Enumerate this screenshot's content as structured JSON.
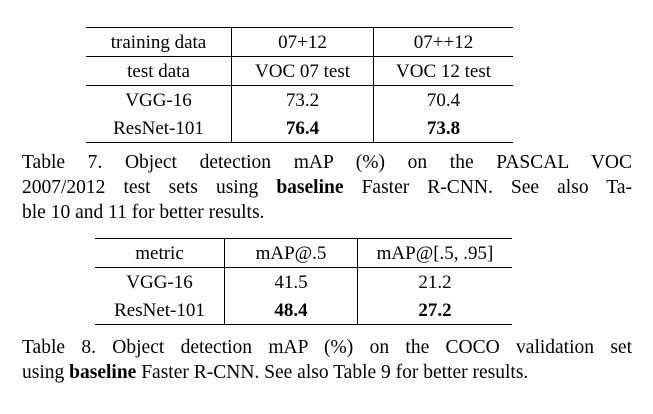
{
  "table7": {
    "header": [
      "training data",
      "07+12",
      "07++12"
    ],
    "subheader": [
      "test data",
      "VOC 07 test",
      "VOC 12 test"
    ],
    "rows": [
      {
        "model": "VGG-16",
        "values": [
          "73.2",
          "70.4"
        ],
        "bold": false
      },
      {
        "model": "ResNet-101",
        "values": [
          "76.4",
          "73.8"
        ],
        "bold": true
      }
    ],
    "caption": {
      "lines": [
        {
          "pre": "Table 7. Object detection mAP (%) on the PASCAL VOC",
          "bold": "",
          "post": ""
        },
        {
          "pre": "2007/2012 test sets using ",
          "bold": "baseline",
          "post": " Faster R-CNN. See also Ta-"
        },
        {
          "pre": "ble 10 and 11 for better results.",
          "bold": "",
          "post": ""
        }
      ]
    }
  },
  "table8": {
    "header": [
      "metric",
      "mAP@.5",
      "mAP@[.5, .95]"
    ],
    "rows": [
      {
        "model": "VGG-16",
        "values": [
          "41.5",
          "21.2"
        ],
        "bold": false
      },
      {
        "model": "ResNet-101",
        "values": [
          "48.4",
          "27.2"
        ],
        "bold": true
      }
    ],
    "caption": {
      "lines": [
        {
          "pre": "Table 8. Object detection mAP (%) on the COCO validation set",
          "bold": "",
          "post": ""
        },
        {
          "pre": "using ",
          "bold": "baseline",
          "post": " Faster R-CNN. See also Table 9 for better results."
        }
      ]
    }
  }
}
